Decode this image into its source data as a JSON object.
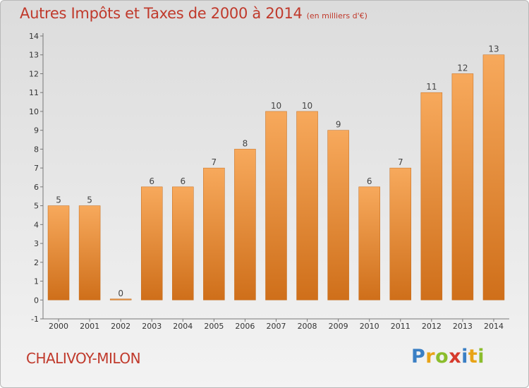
{
  "title": "Autres Impôts et Taxes de 2000 à 2014",
  "unit_note": "(en milliers d'€)",
  "place": "CHALIVOY-MILON",
  "logo": {
    "letters": [
      "P",
      "r",
      "o",
      "x",
      "i",
      "t",
      "i"
    ],
    "colors": [
      "#3a7fc4",
      "#e8a317",
      "#8bbd2c",
      "#d63a2c",
      "#3a7fc4",
      "#e8a317",
      "#8bbd2c"
    ]
  },
  "colors": {
    "bar_top": "#f7a95c",
    "bar_bottom": "#cf6f1a",
    "text_accent": "#c0392b"
  },
  "chart_data": {
    "type": "bar",
    "title": "Autres Impôts et Taxes de 2000 à 2014",
    "subtitle": "(en milliers d'€)",
    "categories": [
      "2000",
      "2001",
      "2002",
      "2003",
      "2004",
      "2005",
      "2006",
      "2007",
      "2008",
      "2009",
      "2010",
      "2011",
      "2012",
      "2013",
      "2014"
    ],
    "values": [
      5,
      5,
      0,
      6,
      6,
      7,
      8,
      10,
      10,
      9,
      6,
      7,
      11,
      12,
      13
    ],
    "data_labels": [
      "5",
      "5",
      "0",
      "6",
      "6",
      "7",
      "8",
      "10",
      "10",
      "9",
      "6",
      "7",
      "11",
      "12",
      "13"
    ],
    "y_ticks": [
      "-1",
      "0",
      "1",
      "2",
      "3",
      "4",
      "5",
      "6",
      "7",
      "8",
      "9",
      "10",
      "11",
      "12",
      "13",
      "14"
    ],
    "ylim": [
      -1,
      14
    ],
    "grid": false,
    "xlabel": "",
    "ylabel": ""
  }
}
